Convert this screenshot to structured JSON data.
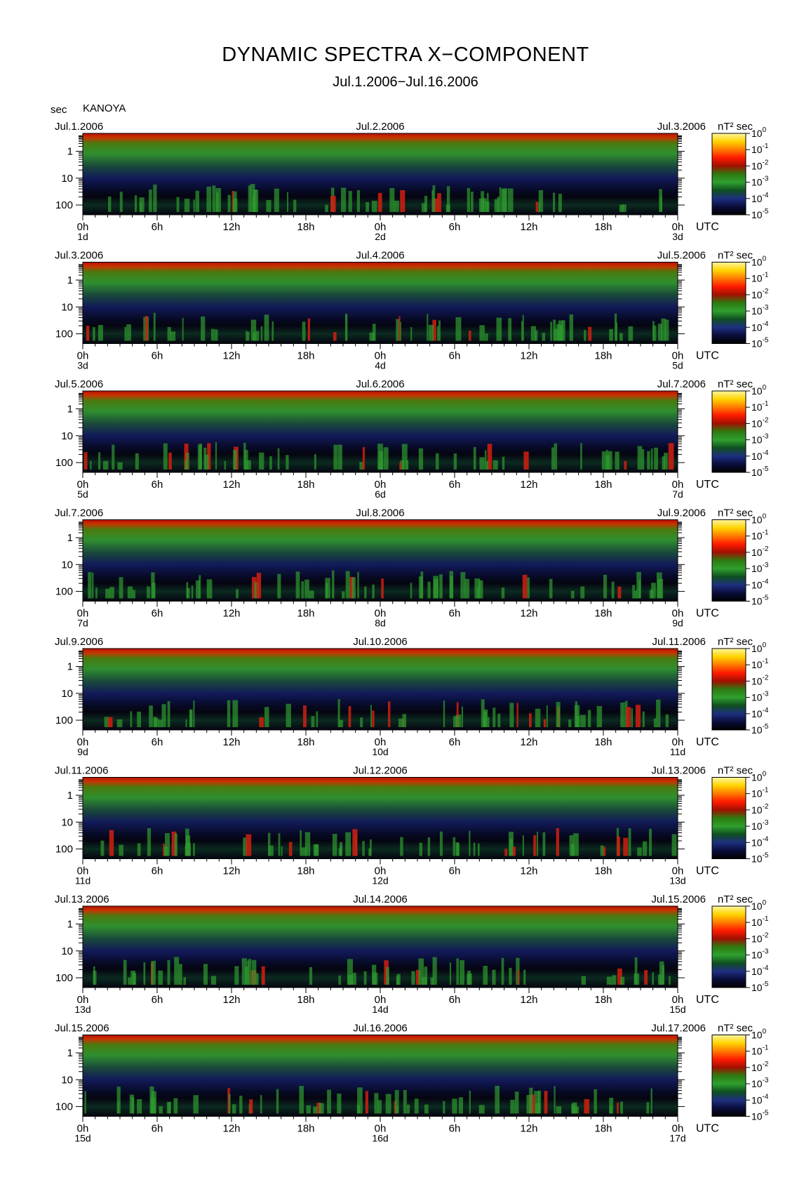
{
  "title": "DYNAMIC SPECTRA X−COMPONENT",
  "subtitle": "Jul.1.2006−Jul.16.2006",
  "y_unit": "sec",
  "station": "KANOYA",
  "cbar_unit": "nT² sec",
  "utc_label": "UTC",
  "chart_data": {
    "type": "heatmap",
    "title": "DYNAMIC SPECTRA X−COMPONENT",
    "subtitle": "Jul.1.2006−Jul.16.2006",
    "ylabel": "sec",
    "y_scale": "log",
    "y_ticks": [
      "1",
      "10",
      "100"
    ],
    "x_ticks": [
      "0h",
      "6h",
      "12h",
      "18h",
      "0h",
      "6h",
      "12h",
      "18h",
      "0h"
    ],
    "colorbar": {
      "label": "nT² sec",
      "scale": "log",
      "ticks": [
        "10",
        "10",
        "10",
        "10",
        "10",
        "10"
      ],
      "exponents": [
        "0",
        "-1",
        "-2",
        "-3",
        "-4",
        "-5"
      ],
      "colors": [
        "#ffff66",
        "#ffcc00",
        "#ff6600",
        "#ff1a00",
        "#cc2200",
        "#336600",
        "#33aa33",
        "#115511",
        "#223388",
        "#0b1040",
        "#000000"
      ]
    },
    "panels": [
      {
        "left_date": "Jul.1.2006",
        "mid_date": "Jul.2.2006",
        "right_date": "Jul.3.2006",
        "days": [
          "1d",
          "2d",
          "3d"
        ]
      },
      {
        "left_date": "Jul.3.2006",
        "mid_date": "Jul.4.2006",
        "right_date": "Jul.5.2006",
        "days": [
          "3d",
          "4d",
          "5d"
        ]
      },
      {
        "left_date": "Jul.5.2006",
        "mid_date": "Jul.6.2006",
        "right_date": "Jul.7.2006",
        "days": [
          "5d",
          "6d",
          "7d"
        ]
      },
      {
        "left_date": "Jul.7.2006",
        "mid_date": "Jul.8.2006",
        "right_date": "Jul.9.2006",
        "days": [
          "7d",
          "8d",
          "9d"
        ]
      },
      {
        "left_date": "Jul.9.2006",
        "mid_date": "Jul.10.2006",
        "right_date": "Jul.11.2006",
        "days": [
          "9d",
          "10d",
          "11d"
        ]
      },
      {
        "left_date": "Jul.11.2006",
        "mid_date": "Jul.12.2006",
        "right_date": "Jul.13.2006",
        "days": [
          "11d",
          "12d",
          "13d"
        ]
      },
      {
        "left_date": "Jul.13.2006",
        "mid_date": "Jul.14.2006",
        "right_date": "Jul.15.2006",
        "days": [
          "13d",
          "14d",
          "15d"
        ]
      },
      {
        "left_date": "Jul.15.2006",
        "mid_date": "Jul.16.2006",
        "right_date": "Jul.17.2006",
        "days": [
          "15d",
          "16d",
          "17d"
        ]
      }
    ]
  }
}
